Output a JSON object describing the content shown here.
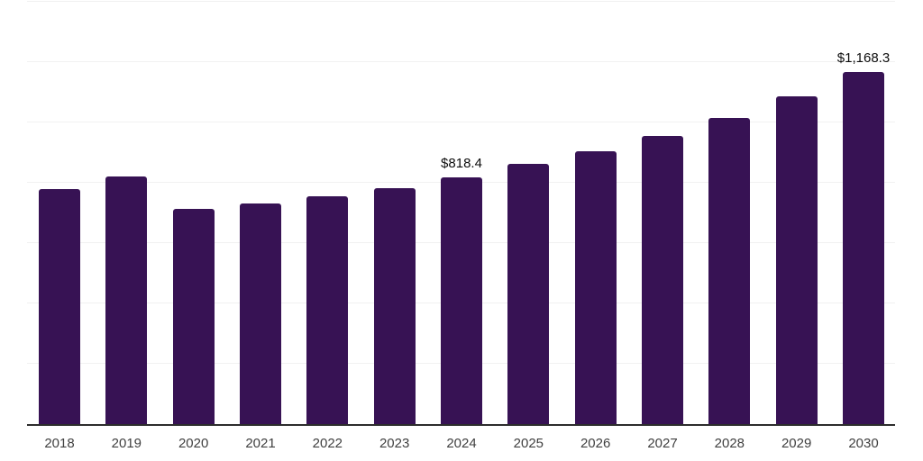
{
  "chart_data": {
    "type": "bar",
    "categories": [
      "2018",
      "2019",
      "2020",
      "2021",
      "2022",
      "2023",
      "2024",
      "2025",
      "2026",
      "2027",
      "2028",
      "2029",
      "2030"
    ],
    "values": [
      780,
      822,
      713,
      730,
      756,
      781,
      818.4,
      862,
      904,
      955,
      1016,
      1086,
      1168.3
    ],
    "data_labels": {
      "2024": "$818.4",
      "2030": "$1,168.3"
    },
    "title": "",
    "xlabel": "",
    "ylabel": "",
    "ylim": [
      0,
      1400
    ],
    "grid": true,
    "gridline_step": 200,
    "legend": "none"
  },
  "style": {
    "bar_color": "#371254",
    "gridline_color": "#f1f1f1",
    "axis_color": "#2d2d2d",
    "tick_label_color": "#404040",
    "data_label_color": "#0d0d0d"
  }
}
